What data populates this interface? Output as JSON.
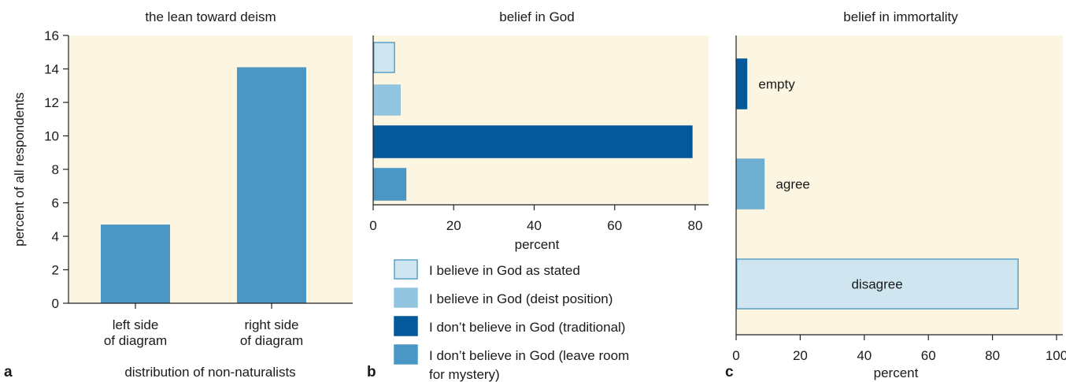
{
  "chart_data": [
    {
      "panel": "a",
      "type": "bar",
      "title": "the lean toward deism",
      "xlabel": "distribution of non-naturalists",
      "ylabel": "percent of all respondents",
      "categories": [
        "left side\nof diagram",
        "right side\nof diagram"
      ],
      "values": [
        4.7,
        14.1
      ],
      "ylim": [
        0,
        16
      ],
      "yticks": [
        "0",
        "2",
        "4",
        "6",
        "8",
        "10",
        "12",
        "14",
        "16"
      ],
      "grid": false,
      "bar_color": "#4a97c5"
    },
    {
      "panel": "b",
      "type": "bar",
      "orientation": "horizontal",
      "title": "belief in God",
      "xlabel": "percent",
      "xlim": [
        0,
        80
      ],
      "xticks": [
        "0",
        "20",
        "40",
        "60",
        "80"
      ],
      "grid": false,
      "legend_position": "below",
      "series": [
        {
          "name": "I believe in God as stated",
          "value": 5.3,
          "color": "#cfe6f1",
          "edge": "#5aa0c6"
        },
        {
          "name": "I believe in God (deist position)",
          "value": 6.7,
          "color": "#93c5e0",
          "edge": "#93c5e0"
        },
        {
          "name": "I don’t believe in God (traditional)",
          "value": 79.2,
          "color": "#04599a",
          "edge": "#04599a"
        },
        {
          "name": "I don’t believe in God (leave room\nfor mystery)",
          "value": 8.1,
          "color": "#4a97c5",
          "edge": "#4a97c5"
        }
      ]
    },
    {
      "panel": "c",
      "type": "bar",
      "orientation": "horizontal",
      "title": "belief in immortality",
      "xlabel": "percent",
      "xlim": [
        0,
        100
      ],
      "xticks": [
        "0",
        "20",
        "40",
        "60",
        "80",
        "100"
      ],
      "grid": false,
      "categories": [
        "empty",
        "agree",
        "disagree"
      ],
      "values": [
        3.3,
        8.7,
        88.0
      ],
      "colors": [
        "#04599a",
        "#6eaed0",
        "#cfe6f1"
      ],
      "edges": [
        "#04599a",
        "#6eaed0",
        "#5aa0c6"
      ]
    }
  ],
  "colors": {
    "plot_background": "#fcf5e1",
    "axis": "#222222"
  }
}
